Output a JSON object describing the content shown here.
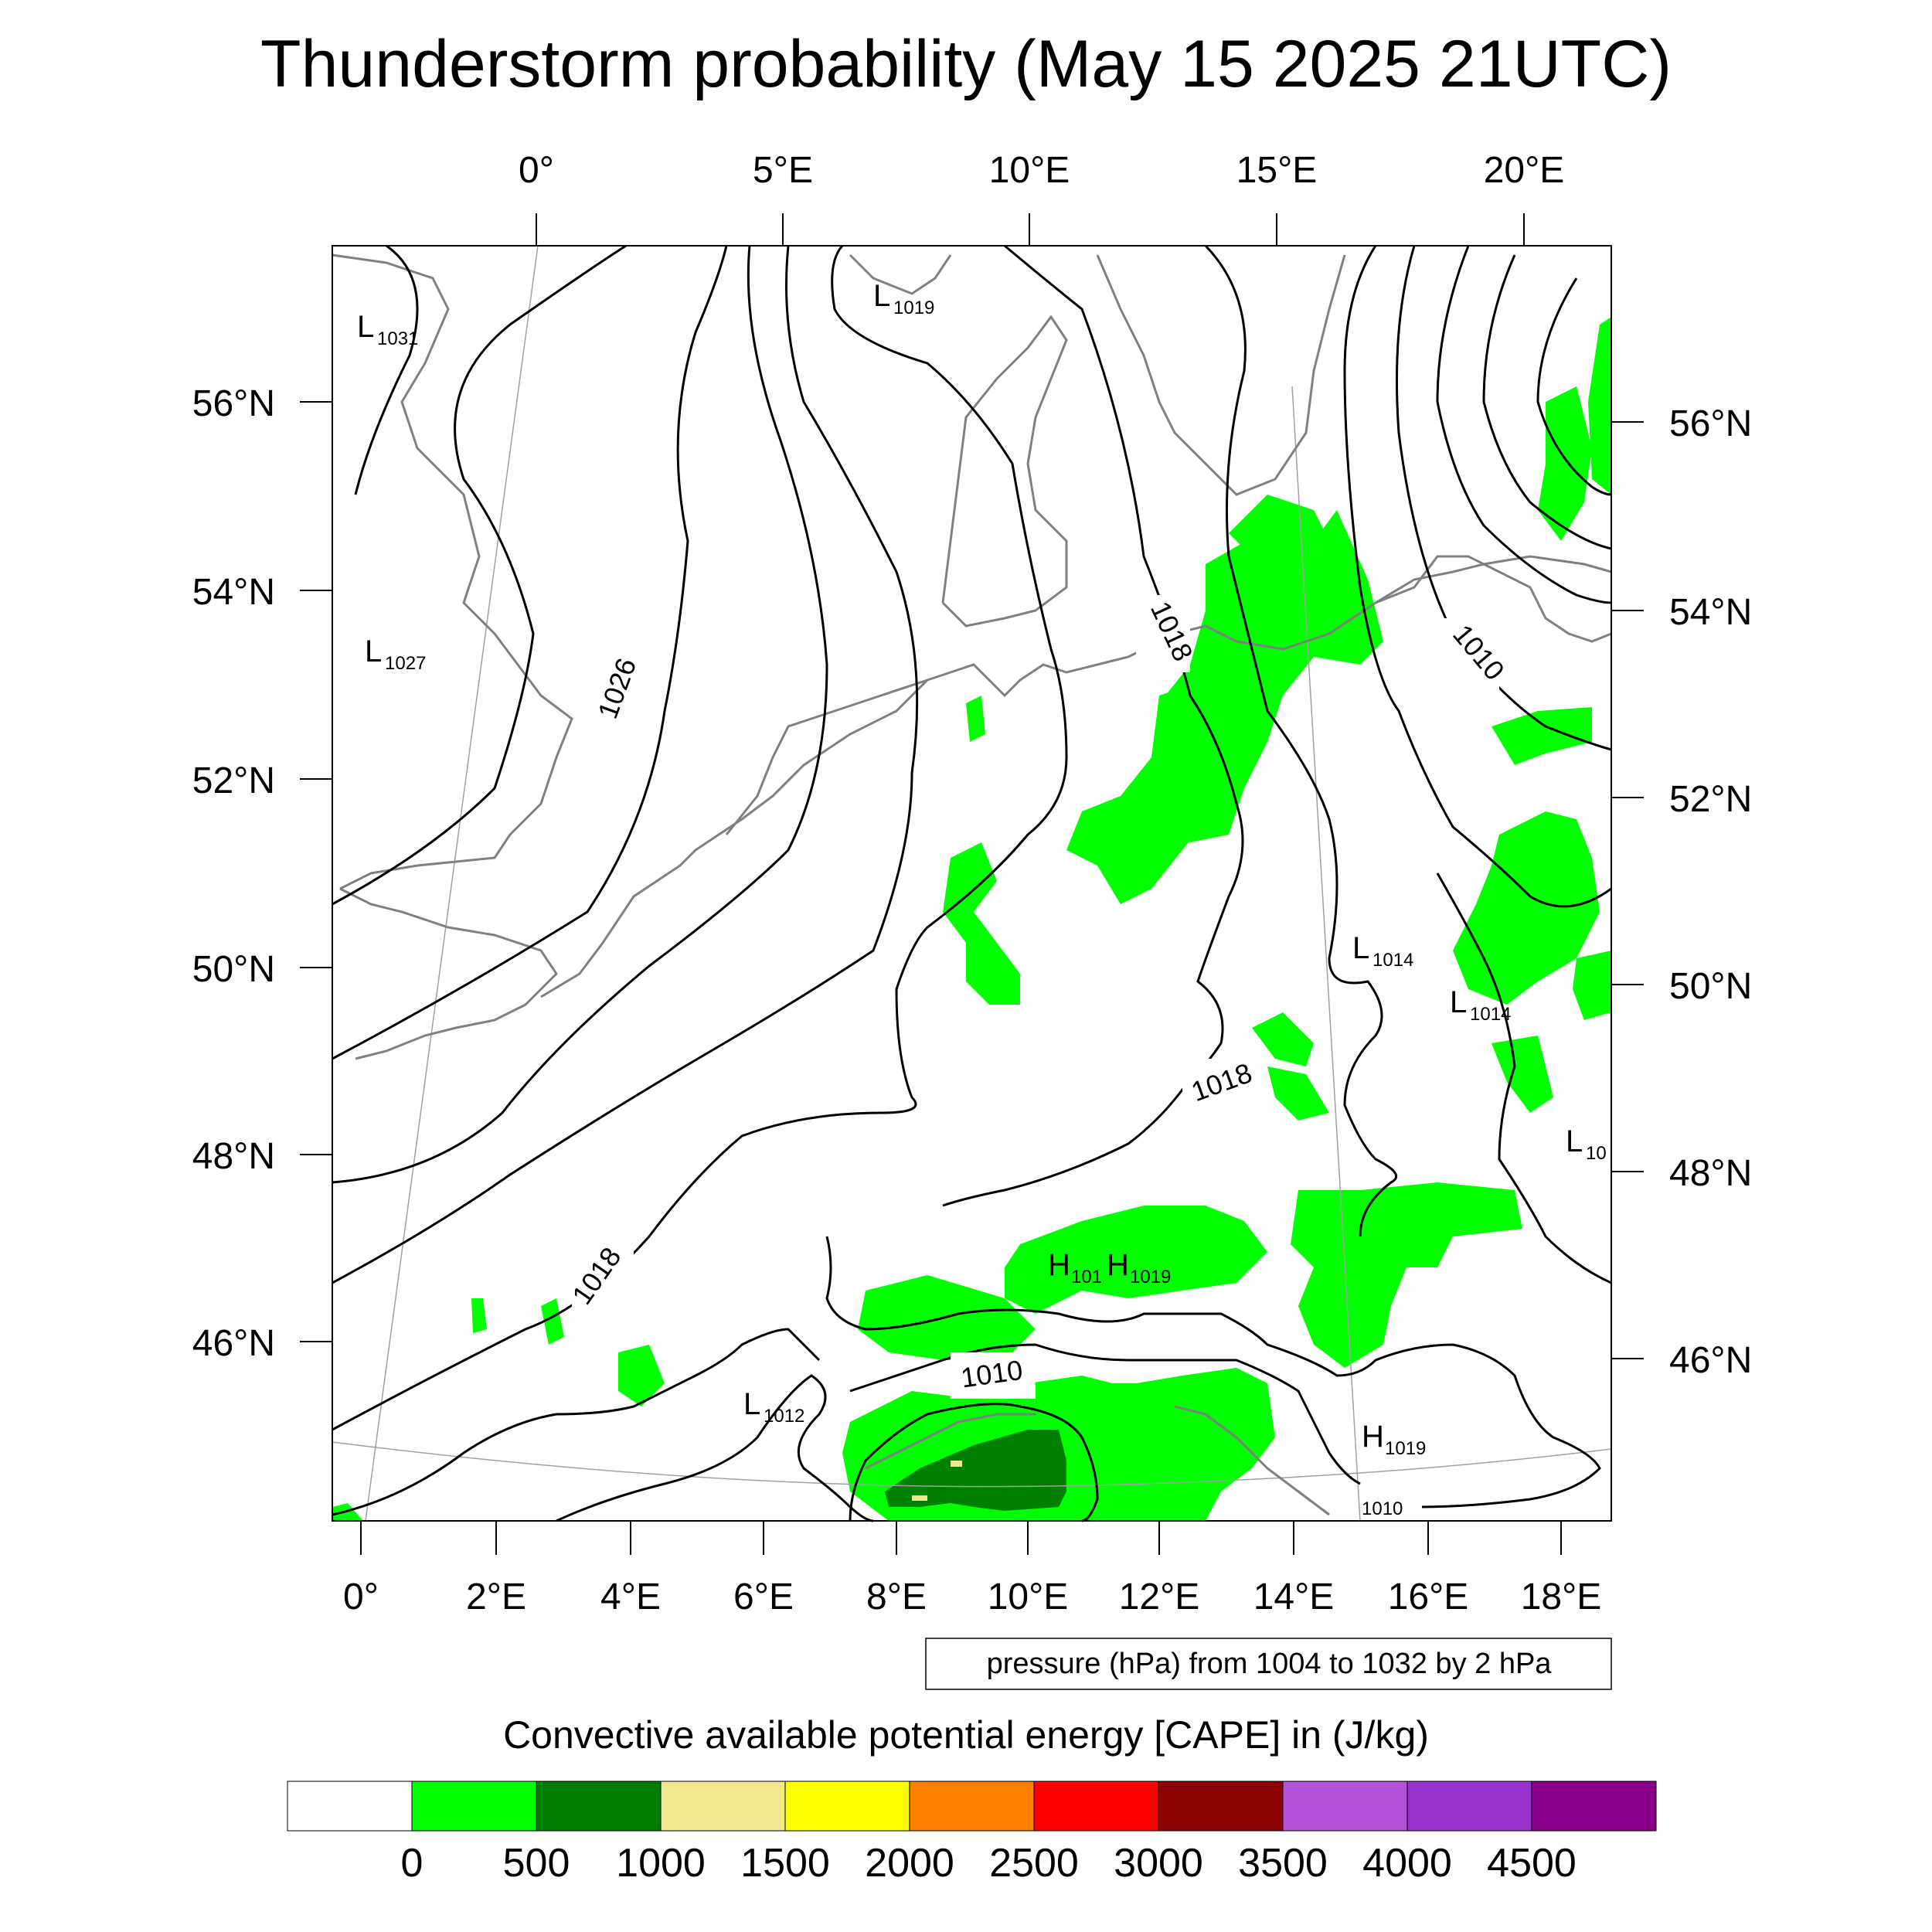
{
  "title": "Thunderstorm probability (May 15 2025 21UTC)",
  "top_lon_labels": [
    "0°",
    "5°E",
    "10°E",
    "15°E",
    "20°E"
  ],
  "bottom_lon_labels": [
    "0°",
    "2°E",
    "4°E",
    "6°E",
    "8°E",
    "10°E",
    "12°E",
    "14°E",
    "16°E",
    "18°E"
  ],
  "left_lat_labels": [
    "56°N",
    "54°N",
    "52°N",
    "50°N",
    "48°N",
    "46°N"
  ],
  "right_lat_labels": [
    "56°N",
    "54°N",
    "52°N",
    "50°N",
    "48°N",
    "46°N"
  ],
  "isobar_labels": [
    "1026",
    "1018",
    "1018",
    "1018",
    "1010",
    "1010"
  ],
  "pressure_centers": [
    {
      "kind": "L",
      "value": "1031"
    },
    {
      "kind": "L",
      "value": "1027"
    },
    {
      "kind": "L",
      "value": "1019"
    },
    {
      "kind": "L",
      "value": "1014"
    },
    {
      "kind": "L",
      "value": "1014"
    },
    {
      "kind": "L",
      "value": "10"
    },
    {
      "kind": "H",
      "value": "101"
    },
    {
      "kind": "H",
      "value": "1019"
    },
    {
      "kind": "L",
      "value": "1012"
    },
    {
      "kind": "H",
      "value": "1019"
    },
    {
      "kind": "",
      "value": "1010"
    }
  ],
  "contour_info": "pressure (hPa) from 1004 to 1032 by 2 hPa",
  "colorbar": {
    "title": "Convective available potential energy [CAPE] in (J/kg)",
    "ticks": [
      "0",
      "500",
      "1000",
      "1500",
      "2000",
      "2500",
      "3000",
      "3500",
      "4000",
      "4500"
    ],
    "colors": [
      "#ffffff",
      "#00ff00",
      "#008000",
      "#f0e68c",
      "#ffff00",
      "#ff8000",
      "#ff0000",
      "#8b0000",
      "#b452d8",
      "#9932cc",
      "#8b008b"
    ]
  },
  "colors": {
    "cape_low": "#00ff00",
    "cape_mid": "#008000",
    "cape_high": "#f0e68c",
    "coastline": "#808080",
    "isobar": "#000000"
  }
}
